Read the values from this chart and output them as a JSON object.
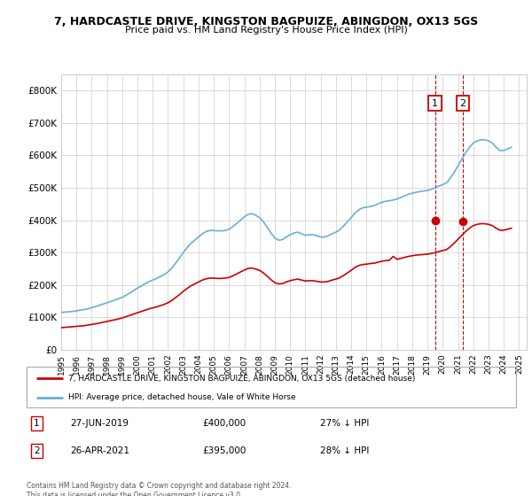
{
  "title_line1": "7, HARDCASTLE DRIVE, KINGSTON BAGPUIZE, ABINGDON, OX13 5GS",
  "title_line2": "Price paid vs. HM Land Registry's House Price Index (HPI)",
  "ylim": [
    0,
    850000
  ],
  "yticks": [
    0,
    100000,
    200000,
    300000,
    400000,
    500000,
    600000,
    700000,
    800000
  ],
  "ytick_labels": [
    "£0",
    "£100K",
    "£200K",
    "£300K",
    "£400K",
    "£500K",
    "£600K",
    "£700K",
    "£800K"
  ],
  "xlim_start": 1995.0,
  "xlim_end": 2025.5,
  "hpi_color": "#6baed6",
  "price_color": "#cc0000",
  "vline_color": "#cc0000",
  "legend_label_red": "7, HARDCASTLE DRIVE, KINGSTON BAGPUIZE, ABINGDON, OX13 5GS (detached house)",
  "legend_label_blue": "HPI: Average price, detached house, Vale of White Horse",
  "transaction1_date": "27-JUN-2019",
  "transaction1_price": "£400,000",
  "transaction1_hpi": "27% ↓ HPI",
  "transaction1_year": 2019.49,
  "transaction1_price_val": 400000,
  "transaction2_date": "26-APR-2021",
  "transaction2_price": "£395,000",
  "transaction2_hpi": "28% ↓ HPI",
  "transaction2_year": 2021.32,
  "transaction2_price_val": 395000,
  "footer": "Contains HM Land Registry data © Crown copyright and database right 2024.\nThis data is licensed under the Open Government Licence v3.0.",
  "background_color": "#ffffff",
  "grid_color": "#cccccc",
  "hpi_data": [
    [
      1995.0,
      115000
    ],
    [
      1995.25,
      116000
    ],
    [
      1995.5,
      117000
    ],
    [
      1995.75,
      118000
    ],
    [
      1996.0,
      120000
    ],
    [
      1996.25,
      122000
    ],
    [
      1996.5,
      124000
    ],
    [
      1996.75,
      126000
    ],
    [
      1997.0,
      130000
    ],
    [
      1997.25,
      133000
    ],
    [
      1997.5,
      137000
    ],
    [
      1997.75,
      141000
    ],
    [
      1998.0,
      145000
    ],
    [
      1998.25,
      149000
    ],
    [
      1998.5,
      153000
    ],
    [
      1998.75,
      157000
    ],
    [
      1999.0,
      162000
    ],
    [
      1999.25,
      168000
    ],
    [
      1999.5,
      175000
    ],
    [
      1999.75,
      183000
    ],
    [
      2000.0,
      190000
    ],
    [
      2000.25,
      197000
    ],
    [
      2000.5,
      204000
    ],
    [
      2000.75,
      210000
    ],
    [
      2001.0,
      215000
    ],
    [
      2001.25,
      220000
    ],
    [
      2001.5,
      226000
    ],
    [
      2001.75,
      232000
    ],
    [
      2002.0,
      240000
    ],
    [
      2002.25,
      252000
    ],
    [
      2002.5,
      267000
    ],
    [
      2002.75,
      283000
    ],
    [
      2003.0,
      300000
    ],
    [
      2003.25,
      315000
    ],
    [
      2003.5,
      328000
    ],
    [
      2003.75,
      338000
    ],
    [
      2004.0,
      348000
    ],
    [
      2004.25,
      358000
    ],
    [
      2004.5,
      365000
    ],
    [
      2004.75,
      368000
    ],
    [
      2005.0,
      368000
    ],
    [
      2005.25,
      367000
    ],
    [
      2005.5,
      367000
    ],
    [
      2005.75,
      368000
    ],
    [
      2006.0,
      372000
    ],
    [
      2006.25,
      380000
    ],
    [
      2006.5,
      390000
    ],
    [
      2006.75,
      400000
    ],
    [
      2007.0,
      410000
    ],
    [
      2007.25,
      418000
    ],
    [
      2007.5,
      420000
    ],
    [
      2007.75,
      415000
    ],
    [
      2008.0,
      408000
    ],
    [
      2008.25,
      395000
    ],
    [
      2008.5,
      378000
    ],
    [
      2008.75,
      360000
    ],
    [
      2009.0,
      345000
    ],
    [
      2009.25,
      338000
    ],
    [
      2009.5,
      340000
    ],
    [
      2009.75,
      348000
    ],
    [
      2010.0,
      355000
    ],
    [
      2010.25,
      360000
    ],
    [
      2010.5,
      363000
    ],
    [
      2010.75,
      358000
    ],
    [
      2011.0,
      353000
    ],
    [
      2011.25,
      355000
    ],
    [
      2011.5,
      355000
    ],
    [
      2011.75,
      352000
    ],
    [
      2012.0,
      348000
    ],
    [
      2012.25,
      348000
    ],
    [
      2012.5,
      352000
    ],
    [
      2012.75,
      358000
    ],
    [
      2013.0,
      363000
    ],
    [
      2013.25,
      370000
    ],
    [
      2013.5,
      382000
    ],
    [
      2013.75,
      395000
    ],
    [
      2014.0,
      408000
    ],
    [
      2014.25,
      422000
    ],
    [
      2014.5,
      432000
    ],
    [
      2014.75,
      438000
    ],
    [
      2015.0,
      440000
    ],
    [
      2015.25,
      442000
    ],
    [
      2015.5,
      445000
    ],
    [
      2015.75,
      450000
    ],
    [
      2016.0,
      455000
    ],
    [
      2016.25,
      458000
    ],
    [
      2016.5,
      460000
    ],
    [
      2016.75,
      462000
    ],
    [
      2017.0,
      465000
    ],
    [
      2017.25,
      470000
    ],
    [
      2017.5,
      475000
    ],
    [
      2017.75,
      480000
    ],
    [
      2018.0,
      483000
    ],
    [
      2018.25,
      486000
    ],
    [
      2018.5,
      488000
    ],
    [
      2018.75,
      490000
    ],
    [
      2019.0,
      492000
    ],
    [
      2019.25,
      495000
    ],
    [
      2019.5,
      500000
    ],
    [
      2019.75,
      505000
    ],
    [
      2020.0,
      510000
    ],
    [
      2020.25,
      515000
    ],
    [
      2020.5,
      530000
    ],
    [
      2020.75,
      548000
    ],
    [
      2021.0,
      568000
    ],
    [
      2021.25,
      588000
    ],
    [
      2021.5,
      608000
    ],
    [
      2021.75,
      625000
    ],
    [
      2022.0,
      638000
    ],
    [
      2022.25,
      645000
    ],
    [
      2022.5,
      648000
    ],
    [
      2022.75,
      648000
    ],
    [
      2023.0,
      645000
    ],
    [
      2023.25,
      638000
    ],
    [
      2023.5,
      625000
    ],
    [
      2023.75,
      615000
    ],
    [
      2024.0,
      615000
    ],
    [
      2024.25,
      620000
    ],
    [
      2024.5,
      625000
    ]
  ],
  "price_data": [
    [
      1995.0,
      68000
    ],
    [
      1995.25,
      69000
    ],
    [
      1995.5,
      70000
    ],
    [
      1995.75,
      71000
    ],
    [
      1996.0,
      72000
    ],
    [
      1996.25,
      73000
    ],
    [
      1996.5,
      74000
    ],
    [
      1996.75,
      76000
    ],
    [
      1997.0,
      78000
    ],
    [
      1997.25,
      80000
    ],
    [
      1997.5,
      82000
    ],
    [
      1997.75,
      85000
    ],
    [
      1998.0,
      87000
    ],
    [
      1998.25,
      90000
    ],
    [
      1998.5,
      92000
    ],
    [
      1998.75,
      95000
    ],
    [
      1999.0,
      98000
    ],
    [
      1999.25,
      102000
    ],
    [
      1999.5,
      106000
    ],
    [
      1999.75,
      110000
    ],
    [
      2000.0,
      114000
    ],
    [
      2000.25,
      118000
    ],
    [
      2000.5,
      122000
    ],
    [
      2000.75,
      126000
    ],
    [
      2001.0,
      129000
    ],
    [
      2001.25,
      132000
    ],
    [
      2001.5,
      136000
    ],
    [
      2001.75,
      140000
    ],
    [
      2002.0,
      145000
    ],
    [
      2002.25,
      152000
    ],
    [
      2002.5,
      161000
    ],
    [
      2002.75,
      170000
    ],
    [
      2003.0,
      180000
    ],
    [
      2003.25,
      189000
    ],
    [
      2003.5,
      197000
    ],
    [
      2003.75,
      203000
    ],
    [
      2004.0,
      209000
    ],
    [
      2004.25,
      215000
    ],
    [
      2004.5,
      219000
    ],
    [
      2004.75,
      221000
    ],
    [
      2005.0,
      221000
    ],
    [
      2005.25,
      220000
    ],
    [
      2005.5,
      220000
    ],
    [
      2005.75,
      221000
    ],
    [
      2006.0,
      223000
    ],
    [
      2006.25,
      228000
    ],
    [
      2006.5,
      234000
    ],
    [
      2006.75,
      240000
    ],
    [
      2007.0,
      246000
    ],
    [
      2007.25,
      251000
    ],
    [
      2007.5,
      252000
    ],
    [
      2007.75,
      249000
    ],
    [
      2008.0,
      245000
    ],
    [
      2008.25,
      237000
    ],
    [
      2008.5,
      227000
    ],
    [
      2008.75,
      216000
    ],
    [
      2009.0,
      207000
    ],
    [
      2009.25,
      203000
    ],
    [
      2009.5,
      204000
    ],
    [
      2009.75,
      209000
    ],
    [
      2010.0,
      213000
    ],
    [
      2010.25,
      216000
    ],
    [
      2010.5,
      218000
    ],
    [
      2010.75,
      215000
    ],
    [
      2011.0,
      212000
    ],
    [
      2011.25,
      213000
    ],
    [
      2011.5,
      213000
    ],
    [
      2011.75,
      211000
    ],
    [
      2012.0,
      209000
    ],
    [
      2012.25,
      209000
    ],
    [
      2012.5,
      211000
    ],
    [
      2012.75,
      215000
    ],
    [
      2013.0,
      218000
    ],
    [
      2013.25,
      222000
    ],
    [
      2013.5,
      229000
    ],
    [
      2013.75,
      237000
    ],
    [
      2014.0,
      245000
    ],
    [
      2014.25,
      254000
    ],
    [
      2014.5,
      260000
    ],
    [
      2014.75,
      263000
    ],
    [
      2015.0,
      264000
    ],
    [
      2015.25,
      266000
    ],
    [
      2015.5,
      267000
    ],
    [
      2015.75,
      270000
    ],
    [
      2016.0,
      273000
    ],
    [
      2016.25,
      275000
    ],
    [
      2016.5,
      276000
    ],
    [
      2016.75,
      288000
    ],
    [
      2017.0,
      279000
    ],
    [
      2017.25,
      282000
    ],
    [
      2017.5,
      285000
    ],
    [
      2017.75,
      288000
    ],
    [
      2018.0,
      290000
    ],
    [
      2018.25,
      292000
    ],
    [
      2018.5,
      293000
    ],
    [
      2018.75,
      294000
    ],
    [
      2019.0,
      295000
    ],
    [
      2019.25,
      297000
    ],
    [
      2019.5,
      300000
    ],
    [
      2019.75,
      303000
    ],
    [
      2020.0,
      306000
    ],
    [
      2020.25,
      309000
    ],
    [
      2020.5,
      318000
    ],
    [
      2020.75,
      329000
    ],
    [
      2021.0,
      341000
    ],
    [
      2021.25,
      353000
    ],
    [
      2021.5,
      365000
    ],
    [
      2021.75,
      375000
    ],
    [
      2022.0,
      383000
    ],
    [
      2022.25,
      387000
    ],
    [
      2022.5,
      389000
    ],
    [
      2022.75,
      389000
    ],
    [
      2023.0,
      387000
    ],
    [
      2023.25,
      383000
    ],
    [
      2023.5,
      375000
    ],
    [
      2023.75,
      369000
    ],
    [
      2024.0,
      369000
    ],
    [
      2024.25,
      372000
    ],
    [
      2024.5,
      375000
    ]
  ]
}
